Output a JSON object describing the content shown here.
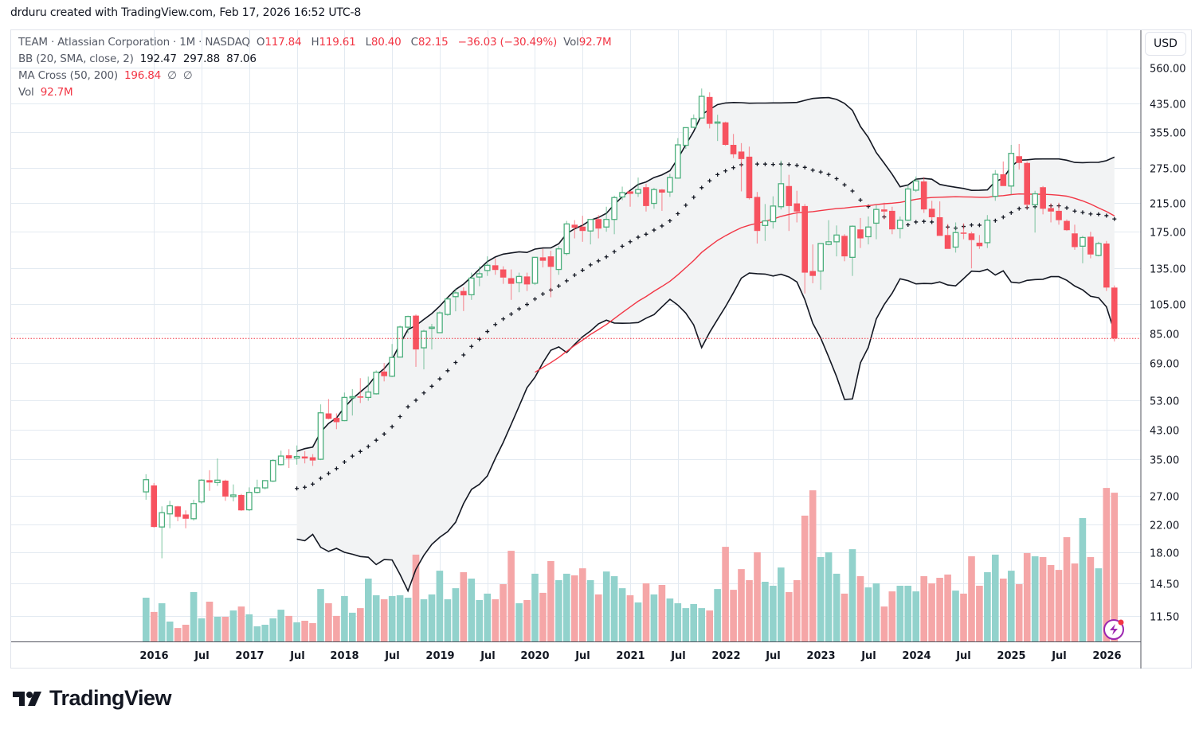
{
  "credit": "drduru created with TradingView.com, Feb 17, 2026 16:52 UTC-8",
  "legend": {
    "symbol": "TEAM · Atlassian Corporation · 1M · NASDAQ",
    "o_label": "O",
    "o": "117.84",
    "h_label": "H",
    "h": "119.61",
    "l_label": "L",
    "l": "80.40",
    "c_label": "C",
    "c": "82.15",
    "change": "−36.03 (−30.49%)",
    "vol_label": "Vol",
    "vol": "92.7M",
    "bb_label": "BB (20, SMA, close, 2)",
    "bb_basis": "192.47",
    "bb_upper": "297.88",
    "bb_lower": "87.06",
    "ma_label": "MA Cross (50, 200)",
    "ma_fast": "196.84",
    "ma_slow_1": "∅",
    "ma_slow_2": "∅",
    "vol_ind_label": "Vol",
    "vol_ind": "92.7M"
  },
  "currency_button": "USD",
  "logo_text": "TradingView",
  "colors": {
    "up": "#4caf7d",
    "down": "#f7525f",
    "vol_up": "#92d2cc",
    "vol_down": "#f5a6a7",
    "bb": "#131722",
    "bb_fill": "#f2f3f4",
    "ma": "#f23645",
    "last_price_line": "#f23645",
    "grid": "#e3eaf1"
  },
  "icons": {
    "alert": "lightning-bolt-icon",
    "logo": "tradingview-logo-icon"
  },
  "chart_data": {
    "type": "candlestick",
    "symbol": "TEAM",
    "interval": "1M",
    "y_scale": "log",
    "ylim": [
      11.5,
      560
    ],
    "grid": true,
    "columns": [
      "month",
      "open",
      "high",
      "low",
      "close",
      "volume_M"
    ],
    "rows": [
      [
        "2015-12",
        27.7,
        31.4,
        26.2,
        30.2,
        27.3
      ],
      [
        "2016-01",
        29.0,
        29.5,
        21.5,
        21.6,
        18.4
      ],
      [
        "2016-02",
        21.6,
        25.0,
        17.3,
        23.9,
        23.8
      ],
      [
        "2016-03",
        23.7,
        26.0,
        21.4,
        25.1,
        12.4
      ],
      [
        "2016-04",
        25.0,
        25.1,
        22.5,
        23.2,
        8.4
      ],
      [
        "2016-05",
        23.6,
        24.3,
        21.4,
        22.9,
        10.4
      ],
      [
        "2016-06",
        22.9,
        26.2,
        22.6,
        25.5,
        30.8
      ],
      [
        "2016-07",
        25.8,
        30.3,
        25.5,
        30.1,
        14.4
      ],
      [
        "2016-08",
        30.1,
        32.3,
        27.9,
        29.6,
        24.8
      ],
      [
        "2016-09",
        29.6,
        35.1,
        28.9,
        30.1,
        15.4
      ],
      [
        "2016-10",
        30.0,
        30.2,
        26.0,
        26.8,
        15.4
      ],
      [
        "2016-11",
        26.8,
        29.2,
        25.9,
        27.1,
        19.3
      ],
      [
        "2016-12",
        27.1,
        27.3,
        24.2,
        24.3,
        21.8
      ],
      [
        "2017-01",
        24.4,
        28.6,
        24.2,
        27.6,
        16.9
      ],
      [
        "2017-02",
        27.6,
        30.2,
        27.4,
        28.5,
        9.4
      ],
      [
        "2017-03",
        28.5,
        30.1,
        28.2,
        30.0,
        10.4
      ],
      [
        "2017-04",
        29.9,
        34.9,
        29.7,
        34.6,
        14.4
      ],
      [
        "2017-05",
        33.6,
        37.1,
        33.4,
        35.7,
        19.8
      ],
      [
        "2017-06",
        35.9,
        37.5,
        32.8,
        35.1,
        15.9
      ],
      [
        "2017-07",
        35.2,
        38.5,
        33.6,
        35.6,
        11.9
      ],
      [
        "2017-08",
        35.6,
        37.0,
        33.9,
        35.1,
        12.9
      ],
      [
        "2017-09",
        35.4,
        36.2,
        33.3,
        34.6,
        11.4
      ],
      [
        "2017-10",
        34.9,
        51.5,
        34.7,
        48.5,
        32.7
      ],
      [
        "2017-11",
        48.3,
        53.5,
        46.3,
        46.5,
        23.8
      ],
      [
        "2017-12",
        46.8,
        48.3,
        43.2,
        45.4,
        15.9
      ],
      [
        "2018-01",
        45.9,
        56.0,
        45.7,
        54.1,
        28.3
      ],
      [
        "2018-02",
        54.0,
        57.4,
        47.6,
        54.4,
        17.9
      ],
      [
        "2018-03",
        54.5,
        62.0,
        52.0,
        54.0,
        20.8
      ],
      [
        "2018-04",
        54.1,
        62.7,
        52.8,
        56.2,
        39.2
      ],
      [
        "2018-05",
        55.5,
        65.5,
        55.2,
        64.7,
        28.8
      ],
      [
        "2018-06",
        65.0,
        69.0,
        60.6,
        62.9,
        26.3
      ],
      [
        "2018-07",
        62.9,
        79.0,
        62.5,
        71.8,
        28.3
      ],
      [
        "2018-08",
        72.0,
        90.0,
        71.8,
        89.1,
        28.8
      ],
      [
        "2018-09",
        89.0,
        96.6,
        85.1,
        96.0,
        27.3
      ],
      [
        "2018-10",
        96.6,
        97.4,
        67.2,
        76.0,
        54.1
      ],
      [
        "2018-11",
        76.9,
        87.4,
        66.0,
        86.5,
        26.3
      ],
      [
        "2018-12",
        88.5,
        91.1,
        76.0,
        89.0,
        29.3
      ],
      [
        "2019-01",
        85.6,
        99.5,
        85.6,
        98.5,
        44.1
      ],
      [
        "2019-02",
        97.4,
        110.0,
        96.5,
        108.7,
        26.3
      ],
      [
        "2019-03",
        110.5,
        117.0,
        99.6,
        113.5,
        33.2
      ],
      [
        "2019-04",
        115.0,
        118.0,
        99.8,
        111.5,
        43.2
      ],
      [
        "2019-05",
        112.0,
        131.0,
        108.0,
        126.0,
        39.2
      ],
      [
        "2019-06",
        127.0,
        137.0,
        119.0,
        130.0,
        25.8
      ],
      [
        "2019-07",
        133.0,
        147.0,
        128.0,
        138.0,
        29.8
      ],
      [
        "2019-08",
        138.0,
        145.0,
        129.0,
        133.5,
        26.3
      ],
      [
        "2019-09",
        134.0,
        137.0,
        121.0,
        126.5,
        35.7
      ],
      [
        "2019-10",
        126.0,
        134.0,
        108.0,
        121.0,
        56.5
      ],
      [
        "2019-11",
        122.0,
        131.0,
        114.0,
        127.5,
        23.8
      ],
      [
        "2019-12",
        127.5,
        131.0,
        115.0,
        120.5,
        25.8
      ],
      [
        "2020-01",
        121.5,
        146.0,
        120.0,
        146.0,
        42.2
      ],
      [
        "2020-02",
        146.0,
        155.0,
        136.0,
        142.5,
        30.3
      ],
      [
        "2020-03",
        147.0,
        153.0,
        110.0,
        136.5,
        50.1
      ],
      [
        "2020-04",
        134.0,
        158.0,
        129.0,
        155.0,
        38.2
      ],
      [
        "2020-05",
        150.0,
        189.0,
        148.0,
        185.0,
        42.2
      ],
      [
        "2020-06",
        184.0,
        190.0,
        167.0,
        180.0,
        41.2
      ],
      [
        "2020-07",
        181.5,
        196.0,
        163.0,
        176.0,
        45.6
      ],
      [
        "2020-08",
        176.0,
        191.0,
        160.0,
        191.0,
        38.2
      ],
      [
        "2020-09",
        191.5,
        197.0,
        167.0,
        179.0,
        29.3
      ],
      [
        "2020-10",
        181.0,
        209.0,
        175.0,
        191.0,
        43.6
      ],
      [
        "2020-11",
        191.0,
        226.0,
        172.0,
        223.0,
        40.7
      ],
      [
        "2020-12",
        224.0,
        241.0,
        219.0,
        231.0,
        33.2
      ],
      [
        "2021-01",
        233.0,
        234.0,
        209.0,
        229.0,
        28.8
      ],
      [
        "2021-02",
        230.0,
        257.0,
        224.0,
        236.0,
        24.3
      ],
      [
        "2021-03",
        240.0,
        246.0,
        202.0,
        210.0,
        36.2
      ],
      [
        "2021-04",
        214.0,
        239.0,
        206.0,
        236.0,
        29.3
      ],
      [
        "2021-05",
        236.0,
        237.0,
        203.0,
        231.0,
        35.2
      ],
      [
        "2021-06",
        232.0,
        264.0,
        224.0,
        257.0,
        26.8
      ],
      [
        "2021-07",
        256.0,
        340.0,
        255.0,
        324.0,
        23.8
      ],
      [
        "2021-08",
        323.0,
        366.0,
        315.0,
        366.0,
        20.8
      ],
      [
        "2021-09",
        367.0,
        402.0,
        365.0,
        390.0,
        23.3
      ],
      [
        "2021-10",
        392.0,
        483.0,
        390.0,
        457.0,
        20.8
      ],
      [
        "2021-11",
        455.0,
        470.0,
        364.0,
        376.0,
        19.3
      ],
      [
        "2021-12",
        380.0,
        401.0,
        333.0,
        381.0,
        32.7
      ],
      [
        "2022-01",
        380.0,
        382.0,
        322.0,
        324.0,
        59.0
      ],
      [
        "2022-02",
        324.0,
        350.0,
        295.0,
        303.0,
        32.2
      ],
      [
        "2022-03",
        309.0,
        328.0,
        233.0,
        293.0,
        45.1
      ],
      [
        "2022-04",
        298.0,
        320.0,
        220.0,
        222.0,
        38.2
      ],
      [
        "2022-05",
        224.0,
        232.0,
        161.0,
        176.0,
        55.6
      ],
      [
        "2022-06",
        183.0,
        213.0,
        164.0,
        189.0,
        37.2
      ],
      [
        "2022-07",
        188.0,
        225.0,
        179.0,
        210.0,
        34.7
      ],
      [
        "2022-08",
        209.0,
        290.0,
        205.0,
        246.0,
        46.1
      ],
      [
        "2022-09",
        242.0,
        262.0,
        176.0,
        210.0,
        30.8
      ],
      [
        "2022-10",
        214.0,
        234.0,
        187.0,
        202.0,
        38.2
      ],
      [
        "2022-11",
        210.0,
        213.0,
        113.0,
        131.0,
        78.4
      ],
      [
        "2022-12",
        132.5,
        160.0,
        121.5,
        128.0,
        94.2
      ],
      [
        "2023-01",
        132.5,
        161.0,
        116.0,
        161.0,
        52.6
      ],
      [
        "2023-02",
        160.0,
        190.0,
        159.0,
        163.0,
        55.6
      ],
      [
        "2023-03",
        163.0,
        183.0,
        147.0,
        171.0,
        42.2
      ],
      [
        "2023-04",
        170.0,
        172.0,
        142.0,
        147.0,
        29.8
      ],
      [
        "2023-05",
        146.0,
        183.0,
        128.0,
        182.0,
        57.5
      ],
      [
        "2023-06",
        178.0,
        193.0,
        156.0,
        167.0,
        40.7
      ],
      [
        "2023-07",
        169.0,
        195.0,
        160.0,
        181.0,
        33.7
      ],
      [
        "2023-08",
        186.0,
        212.0,
        166.0,
        205.0,
        36.2
      ],
      [
        "2023-09",
        205.0,
        215.0,
        191.0,
        202.0,
        21.8
      ],
      [
        "2023-10",
        203.0,
        209.0,
        172.0,
        178.0,
        31.2
      ],
      [
        "2023-11",
        179.0,
        195.0,
        167.0,
        190.0,
        34.7
      ],
      [
        "2023-12",
        190.0,
        244.0,
        189.0,
        237.0,
        34.7
      ],
      [
        "2024-01",
        235.0,
        259.0,
        232.0,
        251.0,
        31.2
      ],
      [
        "2024-02",
        250.0,
        258.0,
        200.0,
        205.0,
        40.7
      ],
      [
        "2024-03",
        206.0,
        218.0,
        190.0,
        194.0,
        36.2
      ],
      [
        "2024-04",
        194.0,
        217.0,
        170.0,
        170.0,
        39.7
      ],
      [
        "2024-05",
        171.0,
        185.0,
        155.0,
        155.0,
        41.7
      ],
      [
        "2024-06",
        157.0,
        187.0,
        151.0,
        174.0,
        31.7
      ],
      [
        "2024-07",
        174.0,
        186.0,
        166.0,
        173.0,
        29.8
      ],
      [
        "2024-08",
        173.0,
        175.0,
        135.0,
        165.0,
        53.1
      ],
      [
        "2024-09",
        162.0,
        171.0,
        155.0,
        158.0,
        34.7
      ],
      [
        "2024-10",
        162.0,
        197.0,
        156.0,
        190.0,
        43.2
      ],
      [
        "2024-11",
        225.0,
        271.0,
        218.0,
        263.0,
        54.1
      ],
      [
        "2024-12",
        263.0,
        288.0,
        242.0,
        242.0,
        39.2
      ],
      [
        "2025-01",
        242.0,
        324.0,
        228.0,
        305.0,
        44.1
      ],
      [
        "2025-02",
        299.0,
        326.0,
        272.0,
        285.0,
        35.7
      ],
      [
        "2025-03",
        285.0,
        288.0,
        206.0,
        212.0,
        55.1
      ],
      [
        "2025-04",
        212.0,
        234.0,
        174.0,
        229.0,
        53.1
      ],
      [
        "2025-05",
        240.0,
        242.0,
        198.0,
        206.0,
        52.6
      ],
      [
        "2025-06",
        207.0,
        214.0,
        187.0,
        202.0,
        47.6
      ],
      [
        "2025-07",
        203.0,
        215.0,
        184.0,
        190.0,
        44.6
      ],
      [
        "2025-08",
        189.0,
        191.0,
        176.0,
        177.0,
        65.0
      ],
      [
        "2025-09",
        173.0,
        184.0,
        154.0,
        157.0,
        48.6
      ],
      [
        "2025-10",
        158.0,
        170.0,
        140.0,
        168.0,
        76.9
      ],
      [
        "2025-11",
        169.0,
        175.0,
        145.0,
        149.0,
        52.6
      ],
      [
        "2025-12",
        148.0,
        163.0,
        147.0,
        161.0,
        45.6
      ],
      [
        "2026-01",
        161.0,
        164.0,
        115.0,
        117.84,
        95.7
      ],
      [
        "2026-02",
        117.84,
        119.61,
        80.4,
        82.15,
        92.7
      ]
    ],
    "indicators": {
      "bollinger": {
        "length": 20,
        "type": "SMA",
        "source": "close",
        "stddev": 2
      },
      "ma_cross": {
        "fast": 50,
        "slow": 200
      }
    },
    "last_price": 82.15,
    "y_tick_labels": [
      "560.00",
      "435.00",
      "355.00",
      "275.00",
      "215.00",
      "175.00",
      "135.00",
      "105.00",
      "85.00",
      "69.00",
      "53.00",
      "43.00",
      "35.00",
      "27.00",
      "22.00",
      "18.00",
      "14.50",
      "11.50"
    ],
    "x_tick_labels": [
      {
        "label": "2016",
        "month": "2016-01"
      },
      {
        "label": "Jul",
        "month": "2016-07"
      },
      {
        "label": "2017",
        "month": "2017-01"
      },
      {
        "label": "Jul",
        "month": "2017-07"
      },
      {
        "label": "2018",
        "month": "2018-01"
      },
      {
        "label": "Jul",
        "month": "2018-07"
      },
      {
        "label": "2019",
        "month": "2019-01"
      },
      {
        "label": "Jul",
        "month": "2019-07"
      },
      {
        "label": "2020",
        "month": "2020-01"
      },
      {
        "label": "Jul",
        "month": "2020-07"
      },
      {
        "label": "2021",
        "month": "2021-01"
      },
      {
        "label": "Jul",
        "month": "2021-07"
      },
      {
        "label": "2022",
        "month": "2022-01"
      },
      {
        "label": "Jul",
        "month": "2022-07"
      },
      {
        "label": "2023",
        "month": "2023-01"
      },
      {
        "label": "Jul",
        "month": "2023-07"
      },
      {
        "label": "2024",
        "month": "2024-01"
      },
      {
        "label": "Jul",
        "month": "2024-07"
      },
      {
        "label": "2025",
        "month": "2025-01"
      },
      {
        "label": "Jul",
        "month": "2025-07"
      },
      {
        "label": "2026",
        "month": "2026-01"
      }
    ]
  }
}
